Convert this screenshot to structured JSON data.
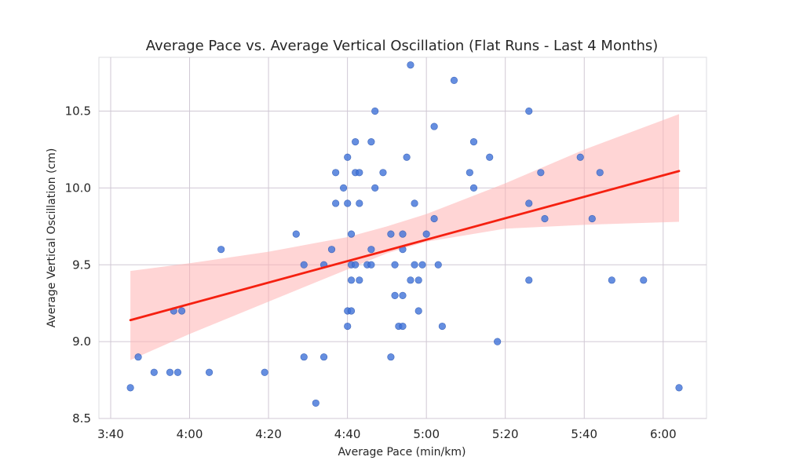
{
  "chart_data": {
    "type": "scatter",
    "title": "Average Pace vs. Average Vertical Oscillation (Flat Runs - Last 4 Months)",
    "xlabel": "Average Pace (min/km)",
    "ylabel": "Average Vertical Oscillation (cm)",
    "x_unit": "minutes per km",
    "xlim": [
      3.617,
      6.183
    ],
    "ylim": [
      8.5,
      10.85
    ],
    "x_ticks": [
      3.6667,
      4.0,
      4.3333,
      4.6667,
      5.0,
      5.3333,
      5.6667,
      6.0
    ],
    "x_tick_labels": [
      "3:40",
      "4:00",
      "4:20",
      "4:40",
      "5:00",
      "5:20",
      "5:40",
      "6:00"
    ],
    "y_ticks": [
      8.5,
      9.0,
      9.5,
      10.0,
      10.5
    ],
    "y_tick_labels": [
      "8.5",
      "9.0",
      "9.5",
      "10.0",
      "10.5"
    ],
    "grid": true,
    "point_color": "#3e72d8",
    "line_color": "#f52010",
    "band_color": "#ffb3b3",
    "plot_background": "#ffffff",
    "grid_color": "#d0c8d4",
    "regression": {
      "start": {
        "x": 3.75,
        "y": 9.14
      },
      "end": {
        "x": 6.067,
        "y": 10.11
      },
      "ci": [
        {
          "x": 3.75,
          "low": 8.88,
          "high": 9.46
        },
        {
          "x": 4.0,
          "low": 9.05,
          "high": 9.51
        },
        {
          "x": 4.333,
          "low": 9.26,
          "high": 9.585
        },
        {
          "x": 4.667,
          "low": 9.47,
          "high": 9.68
        },
        {
          "x": 4.833,
          "low": 9.575,
          "high": 9.75
        },
        {
          "x": 5.0,
          "low": 9.65,
          "high": 9.83
        },
        {
          "x": 5.333,
          "low": 9.735,
          "high": 10.03
        },
        {
          "x": 5.667,
          "low": 9.76,
          "high": 10.25
        },
        {
          "x": 6.067,
          "low": 9.78,
          "high": 10.48
        }
      ]
    },
    "points": [
      {
        "x": 3.75,
        "y": 8.7
      },
      {
        "x": 3.783,
        "y": 8.9
      },
      {
        "x": 3.85,
        "y": 8.8
      },
      {
        "x": 3.917,
        "y": 8.8
      },
      {
        "x": 3.933,
        "y": 9.2
      },
      {
        "x": 3.95,
        "y": 8.8
      },
      {
        "x": 3.967,
        "y": 9.2
      },
      {
        "x": 4.083,
        "y": 8.8
      },
      {
        "x": 4.133,
        "y": 9.6
      },
      {
        "x": 4.317,
        "y": 8.8
      },
      {
        "x": 4.45,
        "y": 9.7
      },
      {
        "x": 4.483,
        "y": 9.5
      },
      {
        "x": 4.483,
        "y": 8.9
      },
      {
        "x": 4.533,
        "y": 8.6
      },
      {
        "x": 4.567,
        "y": 9.5
      },
      {
        "x": 4.567,
        "y": 8.9
      },
      {
        "x": 4.6,
        "y": 9.6
      },
      {
        "x": 4.617,
        "y": 9.9
      },
      {
        "x": 4.617,
        "y": 10.1
      },
      {
        "x": 4.65,
        "y": 10.0
      },
      {
        "x": 4.667,
        "y": 10.2
      },
      {
        "x": 4.667,
        "y": 9.9
      },
      {
        "x": 4.667,
        "y": 9.2
      },
      {
        "x": 4.667,
        "y": 9.1
      },
      {
        "x": 4.683,
        "y": 9.7
      },
      {
        "x": 4.683,
        "y": 9.5
      },
      {
        "x": 4.683,
        "y": 9.4
      },
      {
        "x": 4.683,
        "y": 9.2
      },
      {
        "x": 4.7,
        "y": 10.3
      },
      {
        "x": 4.7,
        "y": 10.1
      },
      {
        "x": 4.7,
        "y": 9.5
      },
      {
        "x": 4.717,
        "y": 10.1
      },
      {
        "x": 4.717,
        "y": 9.9
      },
      {
        "x": 4.717,
        "y": 9.4
      },
      {
        "x": 4.75,
        "y": 9.5
      },
      {
        "x": 4.767,
        "y": 10.3
      },
      {
        "x": 4.767,
        "y": 9.6
      },
      {
        "x": 4.767,
        "y": 9.5
      },
      {
        "x": 4.783,
        "y": 10.5
      },
      {
        "x": 4.783,
        "y": 10.0
      },
      {
        "x": 4.817,
        "y": 10.1
      },
      {
        "x": 4.85,
        "y": 9.7
      },
      {
        "x": 4.85,
        "y": 8.9
      },
      {
        "x": 4.867,
        "y": 9.5
      },
      {
        "x": 4.867,
        "y": 9.3
      },
      {
        "x": 4.883,
        "y": 9.1
      },
      {
        "x": 4.9,
        "y": 9.7
      },
      {
        "x": 4.9,
        "y": 9.6
      },
      {
        "x": 4.9,
        "y": 9.3
      },
      {
        "x": 4.9,
        "y": 9.1
      },
      {
        "x": 4.917,
        "y": 10.2
      },
      {
        "x": 4.933,
        "y": 10.8
      },
      {
        "x": 4.933,
        "y": 9.4
      },
      {
        "x": 4.95,
        "y": 9.9
      },
      {
        "x": 4.95,
        "y": 9.5
      },
      {
        "x": 4.967,
        "y": 9.4
      },
      {
        "x": 4.967,
        "y": 9.2
      },
      {
        "x": 4.983,
        "y": 9.5
      },
      {
        "x": 5.0,
        "y": 9.7
      },
      {
        "x": 5.033,
        "y": 10.4
      },
      {
        "x": 5.033,
        "y": 9.8
      },
      {
        "x": 5.05,
        "y": 9.5
      },
      {
        "x": 5.067,
        "y": 9.1
      },
      {
        "x": 5.117,
        "y": 10.7
      },
      {
        "x": 5.183,
        "y": 10.1
      },
      {
        "x": 5.2,
        "y": 10.3
      },
      {
        "x": 5.2,
        "y": 10.0
      },
      {
        "x": 5.267,
        "y": 10.2
      },
      {
        "x": 5.3,
        "y": 9.0
      },
      {
        "x": 5.433,
        "y": 10.5
      },
      {
        "x": 5.433,
        "y": 9.9
      },
      {
        "x": 5.433,
        "y": 9.4
      },
      {
        "x": 5.483,
        "y": 10.1
      },
      {
        "x": 5.5,
        "y": 9.8
      },
      {
        "x": 5.65,
        "y": 10.2
      },
      {
        "x": 5.7,
        "y": 9.8
      },
      {
        "x": 5.733,
        "y": 10.1
      },
      {
        "x": 5.783,
        "y": 9.4
      },
      {
        "x": 5.917,
        "y": 9.4
      },
      {
        "x": 6.067,
        "y": 8.7
      }
    ]
  }
}
